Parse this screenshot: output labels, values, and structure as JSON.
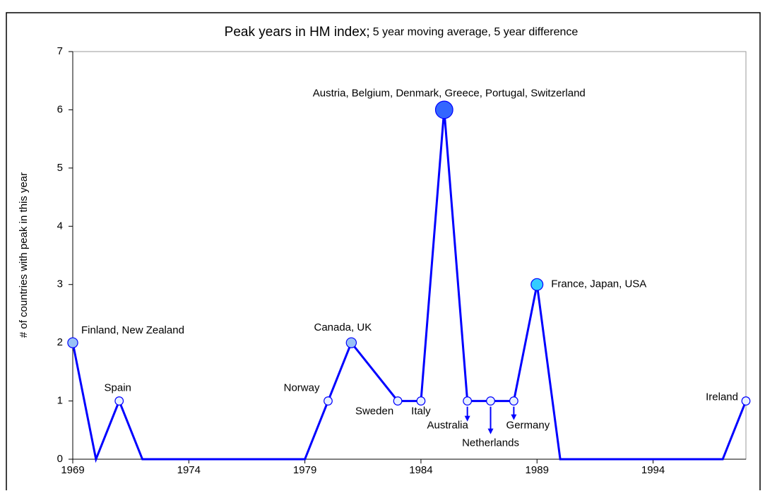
{
  "chart_data": {
    "type": "line",
    "title": "Peak years in HM index;",
    "subtitle": "5 year moving average, 5 year difference",
    "y_label": "# of countries with peak in this year",
    "xlim": [
      1969,
      1998
    ],
    "xticks": [
      1969,
      1974,
      1979,
      1984,
      1989,
      1994
    ],
    "ylim": [
      0,
      7
    ],
    "yticks": [
      0,
      1,
      2,
      3,
      4,
      5,
      6,
      7
    ],
    "series": [
      {
        "color": "#0000ff",
        "x": [
          1969,
          1970,
          1971,
          1972,
          1979,
          1980,
          1981,
          1983,
          1984,
          1985,
          1986,
          1987,
          1988,
          1989,
          1990,
          1997,
          1998
        ],
        "values": [
          2,
          0,
          1,
          0,
          0,
          1,
          2,
          1,
          1,
          6,
          1,
          1,
          1,
          3,
          0,
          0,
          1
        ],
        "labels": [
          "Finland, New  Zealand",
          null,
          "Spain",
          null,
          null,
          "Norway",
          "Canada, UK",
          "Sweden",
          "Italy",
          "Austria, Belgium, Denmark, Greece, Portugal, Switzerland",
          "Australia",
          "Netherlands",
          "Germany",
          "France, Japan, USA",
          null,
          null,
          "Ireland"
        ],
        "marker_colors": [
          "#99c2f5",
          null,
          "#e8f1ff",
          null,
          null,
          "#e8f1ff",
          "#99c2f5",
          "#e8f1ff",
          "#e8f1ff",
          "#3366ff",
          "#e8f1ff",
          "#e8f1ff",
          "#e8f1ff",
          "#33ccff",
          null,
          null,
          "#e8f1ff"
        ]
      }
    ]
  }
}
